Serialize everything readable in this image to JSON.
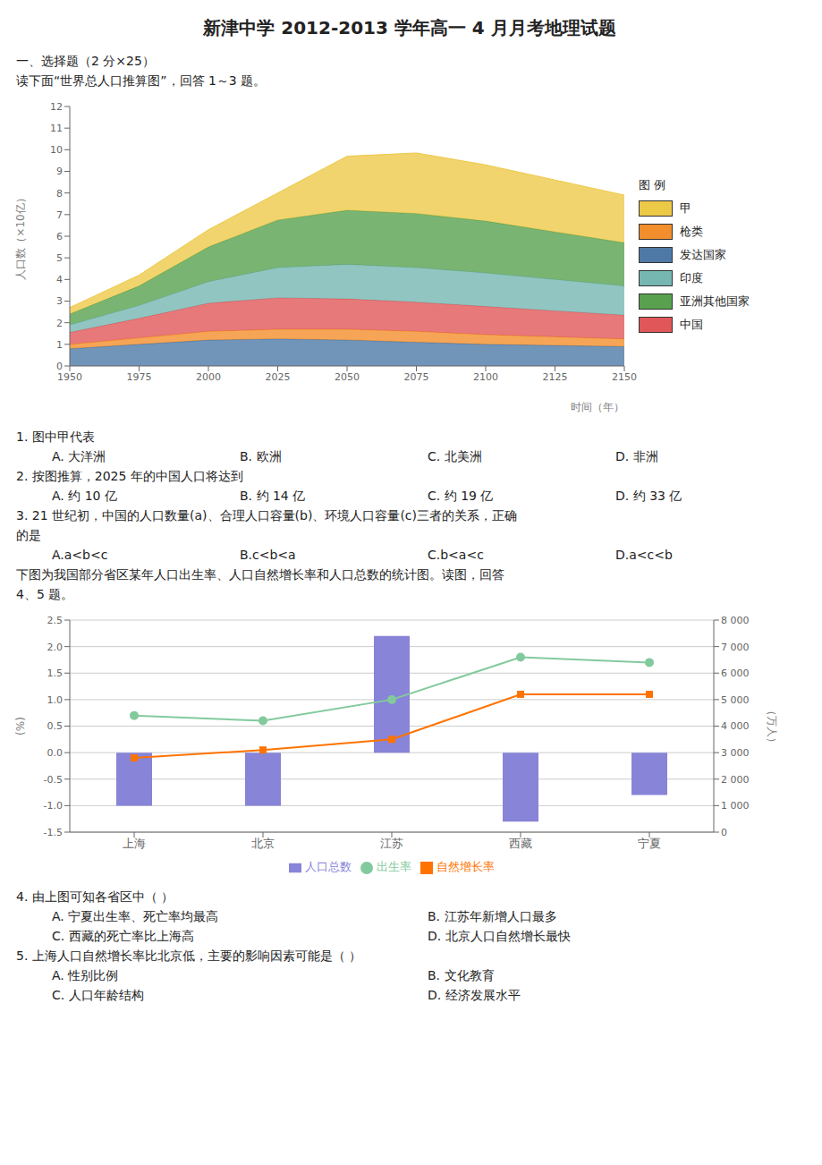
{
  "title": "新津中学 2012-2013 学年高一 4 月月考地理试题",
  "annotations": [
    [
      "一、选择题（2 分×25）"
    ],
    [
      "读下面“世界总人口推算图”，回答 1～3 题。"
    ]
  ],
  "chart_data": [
    {
      "type": "area",
      "stacked": true,
      "grid": false,
      "legend": "right",
      "legend_title": "图  例",
      "xlabel": "时间（年）",
      "ylabel": "人口数（×10亿）",
      "x": [
        1950,
        1975,
        2000,
        2025,
        2050,
        2075,
        2100,
        2125,
        2150
      ],
      "xlim": [
        1950,
        2150
      ],
      "xticks": [
        1950,
        1975,
        2000,
        2025,
        2050,
        2075,
        2100,
        2125,
        2150
      ],
      "ylim": [
        0,
        12
      ],
      "yticks": [
        0,
        1,
        2,
        3,
        4,
        5,
        6,
        7,
        8,
        9,
        10,
        11,
        12
      ],
      "series": [
        {
          "name": "发达国家",
          "values": [
            0.8,
            1.0,
            1.2,
            1.25,
            1.2,
            1.1,
            1.0,
            0.95,
            0.9
          ]
        },
        {
          "name": "枪类",
          "values": [
            0.2,
            0.3,
            0.4,
            0.45,
            0.5,
            0.5,
            0.45,
            0.4,
            0.35
          ]
        },
        {
          "name": "中国",
          "values": [
            0.55,
            0.9,
            1.3,
            1.45,
            1.4,
            1.35,
            1.3,
            1.2,
            1.1
          ]
        },
        {
          "name": "印度",
          "values": [
            0.35,
            0.6,
            1.0,
            1.4,
            1.6,
            1.6,
            1.55,
            1.45,
            1.35
          ]
        },
        {
          "name": "亚洲其他国家",
          "values": [
            0.5,
            0.9,
            1.6,
            2.2,
            2.5,
            2.5,
            2.4,
            2.2,
            2.0
          ]
        },
        {
          "name": "甲",
          "values": [
            0.3,
            0.5,
            0.8,
            1.25,
            2.5,
            2.8,
            2.6,
            2.4,
            2.2
          ]
        }
      ],
      "annotations": [
        [
          "1. 图中甲代表"
        ],
        [
          "A. 大洋洲",
          "B. 欧洲",
          "C. 北美洲",
          "D. 非洲"
        ],
        [
          "2. 按图推算，2025 年的中国人口将达到"
        ],
        [
          "A. 约 10 亿",
          "B. 约 14 亿",
          "C. 约 19 亿",
          "D. 约 33 亿"
        ],
        [
          "3. 21 世纪初，中国的人口数量(a)、合理人口容量(b)、环境人口容量(c)三者的关系，正确"
        ],
        [
          "的是"
        ],
        [
          "A.a<b<c",
          "B.c<b<a",
          "C.b<a<c",
          "D.a<c<b"
        ],
        [
          "下图为我国部分省区某年人口出生率、人口自然增长率和人口总数的统计图。读图，回答"
        ],
        [
          "4、5 题。"
        ]
      ]
    },
    {
      "type": "bar",
      "grid": true,
      "legend": "bottom",
      "categories": [
        "上海",
        "北京",
        "江苏",
        "西藏",
        "宁夏"
      ],
      "ylabel": "(%)",
      "y2label": "（万人）",
      "ylim": [
        -1.5,
        2.5
      ],
      "yticks": [
        -1.5,
        {
          "value": -1.0,
          "label": "-1.0"
        },
        -0.5,
        {
          "value": 0.0,
          "label": "0.0"
        },
        0.5,
        {
          "value": 1.0,
          "label": "1.0"
        },
        1.5,
        {
          "value": 2.0,
          "label": "2.0"
        },
        2.5
      ],
      "y2lim": [
        0,
        8000
      ],
      "y2ticks": [
        0,
        {
          "value": 1000,
          "label": "1 000"
        },
        {
          "value": 2000,
          "label": "2 000"
        },
        {
          "value": 3000,
          "label": "3 000"
        },
        {
          "value": 4000,
          "label": "4 000"
        },
        {
          "value": 5000,
          "label": "5 000"
        },
        {
          "value": 6000,
          "label": "6 000"
        },
        {
          "value": 7000,
          "label": "7 000"
        },
        {
          "value": 8000,
          "label": "8 000"
        }
      ],
      "series": [
        {
          "name": "人口总数",
          "type": "bar",
          "values": [
            -1.0,
            -1.0,
            2.2,
            -1.3,
            -0.8
          ]
        },
        {
          "name": "出生率",
          "type": "line",
          "marker": "circle",
          "values": [
            0.7,
            0.6,
            1.0,
            1.8,
            1.7
          ]
        },
        {
          "name": "自然增长率",
          "type": "line",
          "marker": "square",
          "values": [
            -0.1,
            0.05,
            0.25,
            1.1,
            1.1
          ]
        }
      ],
      "annotations": [
        [
          "4. 由上图可知各省区中（  ）"
        ],
        [
          "A. 宁夏出生率、死亡率均最高",
          "B. 江苏年新增人口最多"
        ],
        [
          "C. 西藏的死亡率比上海高",
          "D. 北京人口自然增长最快"
        ],
        [
          "5. 上海人口自然增长率比北京低，主要的影响因素可能是（  ）"
        ],
        [
          "A. 性别比例",
          "B. 文化教育"
        ],
        [
          "C. 人口年龄结构",
          "D. 经济发展水平"
        ]
      ]
    }
  ]
}
